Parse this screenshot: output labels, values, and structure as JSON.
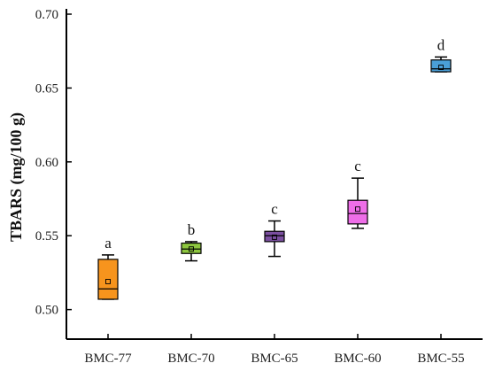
{
  "chart_data": {
    "type": "box",
    "title": "",
    "xlabel": "",
    "ylabel": "TBARS (mg/100 g)",
    "ylim": [
      0.48,
      0.7
    ],
    "yticks": [
      "0.50",
      "0.55",
      "0.60",
      "0.65",
      "0.70"
    ],
    "grid": false,
    "legend": "none",
    "categories": [
      "BMC-77",
      "BMC-70",
      "BMC-65",
      "BMC-60",
      "BMC-55"
    ],
    "boxes": [
      {
        "category": "BMC-77",
        "min": 0.507,
        "q1": 0.507,
        "median": 0.514,
        "q3": 0.534,
        "max": 0.537,
        "mean": 0.519,
        "color": "#f7941d",
        "significance": "a"
      },
      {
        "category": "BMC-70",
        "min": 0.533,
        "q1": 0.538,
        "median": 0.541,
        "q3": 0.545,
        "max": 0.546,
        "mean": 0.541,
        "color": "#8dc63f",
        "significance": "b"
      },
      {
        "category": "BMC-65",
        "min": 0.536,
        "q1": 0.546,
        "median": 0.55,
        "q3": 0.553,
        "max": 0.56,
        "mean": 0.549,
        "color": "#7b4fa0",
        "significance": "c"
      },
      {
        "category": "BMC-60",
        "min": 0.555,
        "q1": 0.558,
        "median": 0.565,
        "q3": 0.574,
        "max": 0.589,
        "mean": 0.568,
        "color": "#ee6ee8",
        "significance": "c"
      },
      {
        "category": "BMC-55",
        "min": 0.661,
        "q1": 0.661,
        "median": 0.663,
        "q3": 0.669,
        "max": 0.671,
        "mean": 0.664,
        "color": "#4a9fd8",
        "significance": "d"
      }
    ]
  }
}
